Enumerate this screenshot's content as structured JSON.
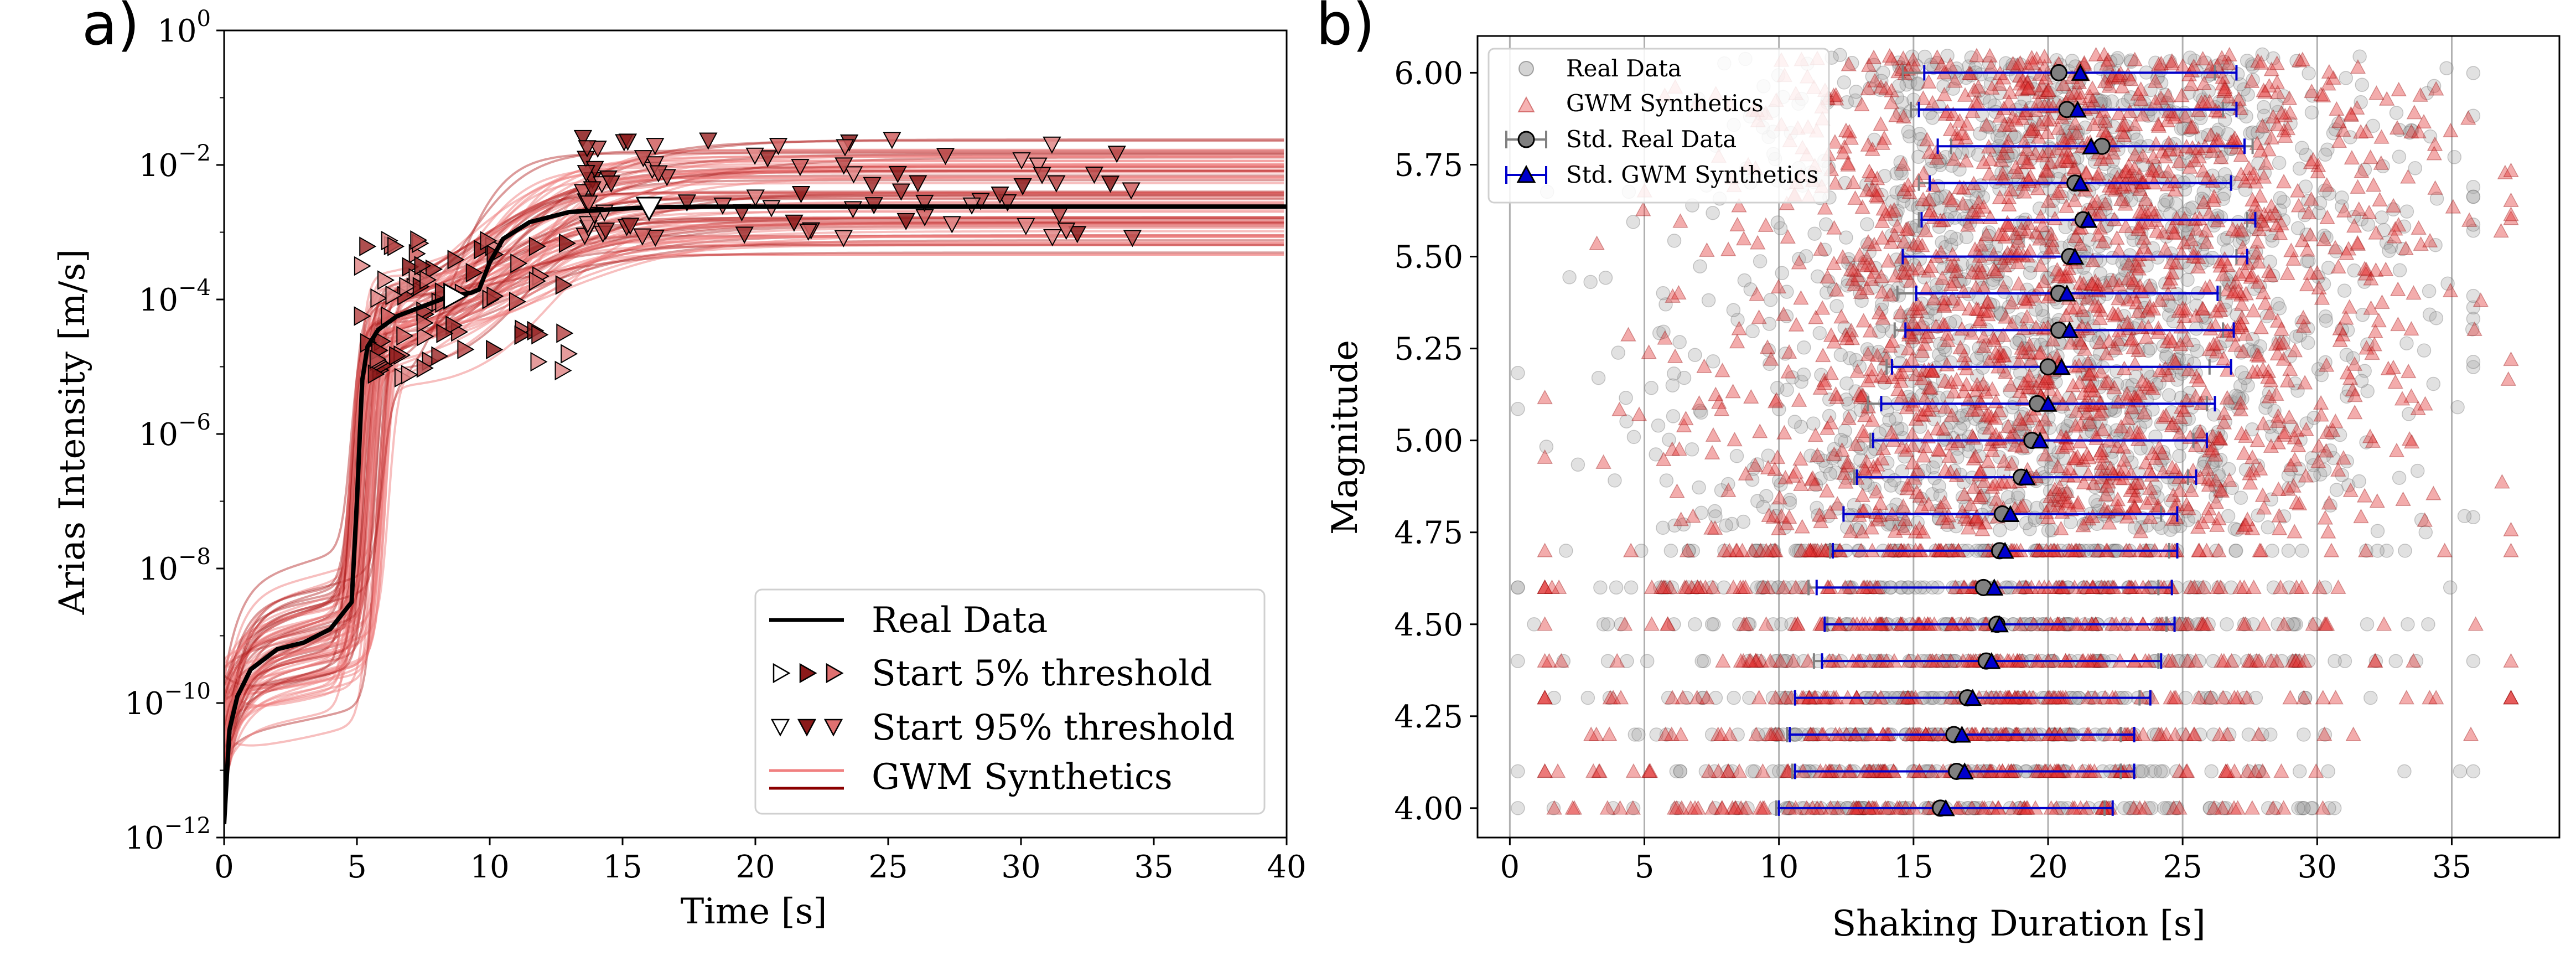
{
  "figure": {
    "panels": [
      {
        "label": "a)",
        "xlabel": "Time [s]",
        "ylabel": "Arias Intensity [m/s]",
        "xticks": [
          "0",
          "5",
          "10",
          "15",
          "20",
          "25",
          "30",
          "35",
          "40"
        ],
        "yticks": [
          {
            "base": "10",
            "exp": "0"
          },
          {
            "base": "10",
            "exp": "−2"
          },
          {
            "base": "10",
            "exp": "−4"
          },
          {
            "base": "10",
            "exp": "−6"
          },
          {
            "base": "10",
            "exp": "−8"
          },
          {
            "base": "10",
            "exp": "−10"
          },
          {
            "base": "10",
            "exp": "−12"
          }
        ],
        "legend": [
          "Real Data",
          "Start 5% threshold",
          "Start 95% threshold",
          "GWM Synthetics"
        ]
      },
      {
        "label": "b)",
        "xlabel": "Shaking Duration [s]",
        "ylabel": "Magnitude",
        "xticks": [
          "0",
          "5",
          "10",
          "15",
          "20",
          "25",
          "30",
          "35"
        ],
        "yticks": [
          "6.00",
          "5.75",
          "5.50",
          "5.25",
          "5.00",
          "4.75",
          "4.50",
          "4.25",
          "4.00"
        ],
        "legend": [
          "Real Data",
          "GWM Synthetics",
          "Std. Real Data",
          "Std. GWM Synthetics"
        ]
      }
    ]
  },
  "colors": {
    "real": "#000000",
    "synthetic": "#b22222",
    "synthetic_light": "#f08080",
    "real_scatter": "#a9a9a9",
    "std_synth": "#0000cd",
    "std_real": "#808080"
  },
  "chart_data": [
    {
      "type": "line",
      "title": "a)",
      "xlabel": "Time [s]",
      "ylabel": "Arias Intensity [m/s]",
      "xlim": [
        0,
        40
      ],
      "ylim_log10": [
        -12,
        0
      ],
      "yscale": "log",
      "legend_position": "lower-right",
      "series": [
        {
          "name": "Real Data",
          "x": [
            0,
            0.2,
            0.5,
            1,
            2,
            3,
            4,
            4.8,
            5.0,
            5.2,
            5.4,
            5.8,
            6.5,
            7.5,
            8.5,
            9.3,
            9.6,
            10,
            10.5,
            11.5,
            13,
            15,
            16,
            18,
            20,
            25,
            30,
            35,
            40
          ],
          "log10_y": [
            -11.8,
            -10.4,
            -9.9,
            -9.5,
            -9.2,
            -9.1,
            -8.9,
            -8.5,
            -7.0,
            -5.2,
            -4.7,
            -4.45,
            -4.25,
            -4.1,
            -3.95,
            -3.9,
            -3.85,
            -3.45,
            -3.1,
            -2.85,
            -2.7,
            -2.65,
            -2.63,
            -2.62,
            -2.62,
            -2.62,
            -2.62,
            -2.62,
            -2.62
          ]
        },
        {
          "name": "GWM Synthetics",
          "count": 80,
          "log10_final_range": [
            -3.4,
            -1.6
          ],
          "step1_time_range": [
            4.7,
            6.2
          ],
          "step2_time_range": [
            8.5,
            12.5
          ]
        }
      ],
      "markers": {
        "start_5pct_threshold": {
          "representative": {
            "x": 8.7,
            "log10_y": -3.95
          },
          "x_range": [
            5.2,
            13
          ],
          "log10_y_range": [
            -5.2,
            -3.1
          ]
        },
        "start_95pct_threshold": {
          "representative": {
            "x": 16.0,
            "log10_y": -2.65
          },
          "x_range": [
            13.5,
            34.5
          ],
          "log10_y_range": [
            -3.1,
            -1.6
          ]
        }
      }
    },
    {
      "type": "scatter",
      "title": "b)",
      "xlabel": "Shaking Duration [s]",
      "ylabel": "Magnitude",
      "xlim": [
        -1.2,
        39
      ],
      "ylim": [
        3.92,
        6.1
      ],
      "legend_position": "top-left",
      "magnitudes": [
        4.0,
        4.1,
        4.2,
        4.3,
        4.4,
        4.5,
        4.6,
        4.7,
        4.8,
        4.9,
        5.0,
        5.1,
        5.2,
        5.3,
        5.4,
        5.5,
        5.6,
        5.7,
        5.8,
        5.9,
        6.0
      ],
      "std_real": {
        "mean": [
          16.0,
          16.6,
          16.5,
          17.0,
          17.7,
          18.1,
          17.6,
          18.2,
          18.3,
          19.0,
          19.4,
          19.6,
          20.0,
          20.4,
          20.4,
          20.8,
          21.3,
          21.0,
          22.0,
          20.7,
          20.4
        ],
        "std": [
          6.1,
          6.1,
          6.2,
          6.4,
          6.4,
          6.3,
          6.5,
          6.3,
          5.9,
          6.2,
          6.0,
          6.3,
          6.0,
          6.1,
          6.0,
          6.2,
          6.1,
          5.8,
          5.6,
          5.8,
          5.8
        ]
      },
      "std_synth": {
        "mean": [
          16.2,
          16.9,
          16.8,
          17.2,
          17.9,
          18.2,
          18.0,
          18.4,
          18.6,
          19.2,
          19.7,
          20.0,
          20.5,
          20.8,
          20.7,
          21.0,
          21.5,
          21.2,
          21.6,
          21.1,
          21.2
        ],
        "std": [
          6.2,
          6.3,
          6.4,
          6.6,
          6.3,
          6.5,
          6.6,
          6.4,
          6.2,
          6.3,
          6.2,
          6.2,
          6.3,
          6.1,
          5.6,
          6.4,
          6.2,
          5.6,
          5.7,
          5.9,
          5.8
        ]
      },
      "real_data_range": [
        0.3,
        35.8
      ],
      "synthetic_range": [
        1.3,
        37.2
      ],
      "legend": [
        "Real Data",
        "GWM Synthetics",
        "Std. Real Data",
        "Std. GWM Synthetics"
      ]
    }
  ]
}
